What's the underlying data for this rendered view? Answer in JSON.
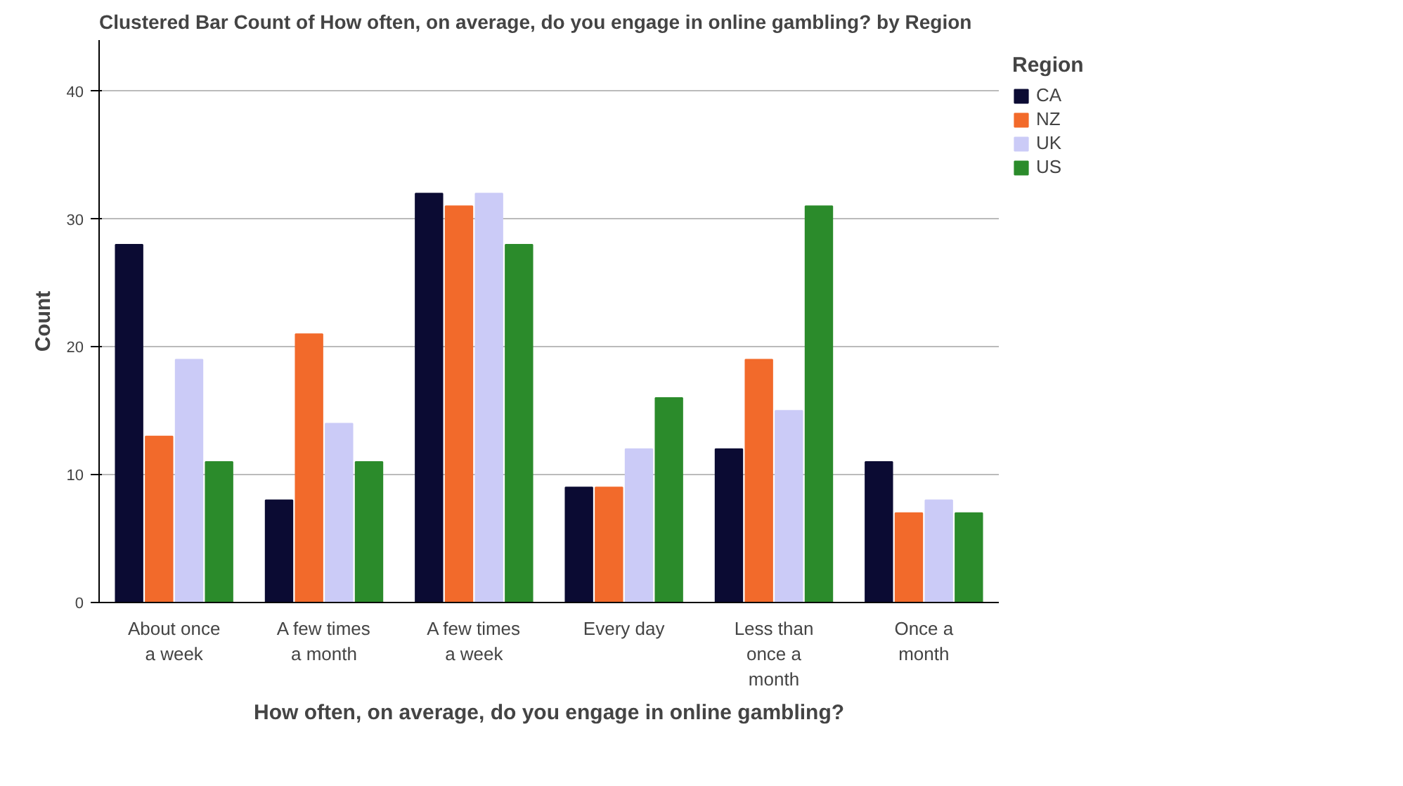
{
  "chart_data": {
    "type": "bar",
    "title": "Clustered Bar Count of How often, on average, do you engage in online gambling? by Region",
    "xlabel": "How often, on average, do you engage in online gambling?",
    "ylabel": "Count",
    "categories": [
      "About once a week",
      "A few times a month",
      "A few times a week",
      "Every day",
      "Less than once a month",
      "Once a month"
    ],
    "series": [
      {
        "name": "CA",
        "color": "#0b0b33",
        "values": [
          28,
          8,
          32,
          9,
          12,
          11
        ]
      },
      {
        "name": "NZ",
        "color": "#f26a2b",
        "values": [
          13,
          21,
          31,
          9,
          19,
          7
        ]
      },
      {
        "name": "UK",
        "color": "#cbcbf7",
        "values": [
          19,
          14,
          32,
          12,
          15,
          8
        ]
      },
      {
        "name": "US",
        "color": "#2b8b2b",
        "values": [
          11,
          11,
          28,
          16,
          31,
          7
        ]
      }
    ],
    "ylim": [
      0,
      44
    ],
    "yticks": [
      0,
      10,
      20,
      30,
      40
    ],
    "grid": "y",
    "legend": "top right",
    "legend_title": "Region"
  }
}
